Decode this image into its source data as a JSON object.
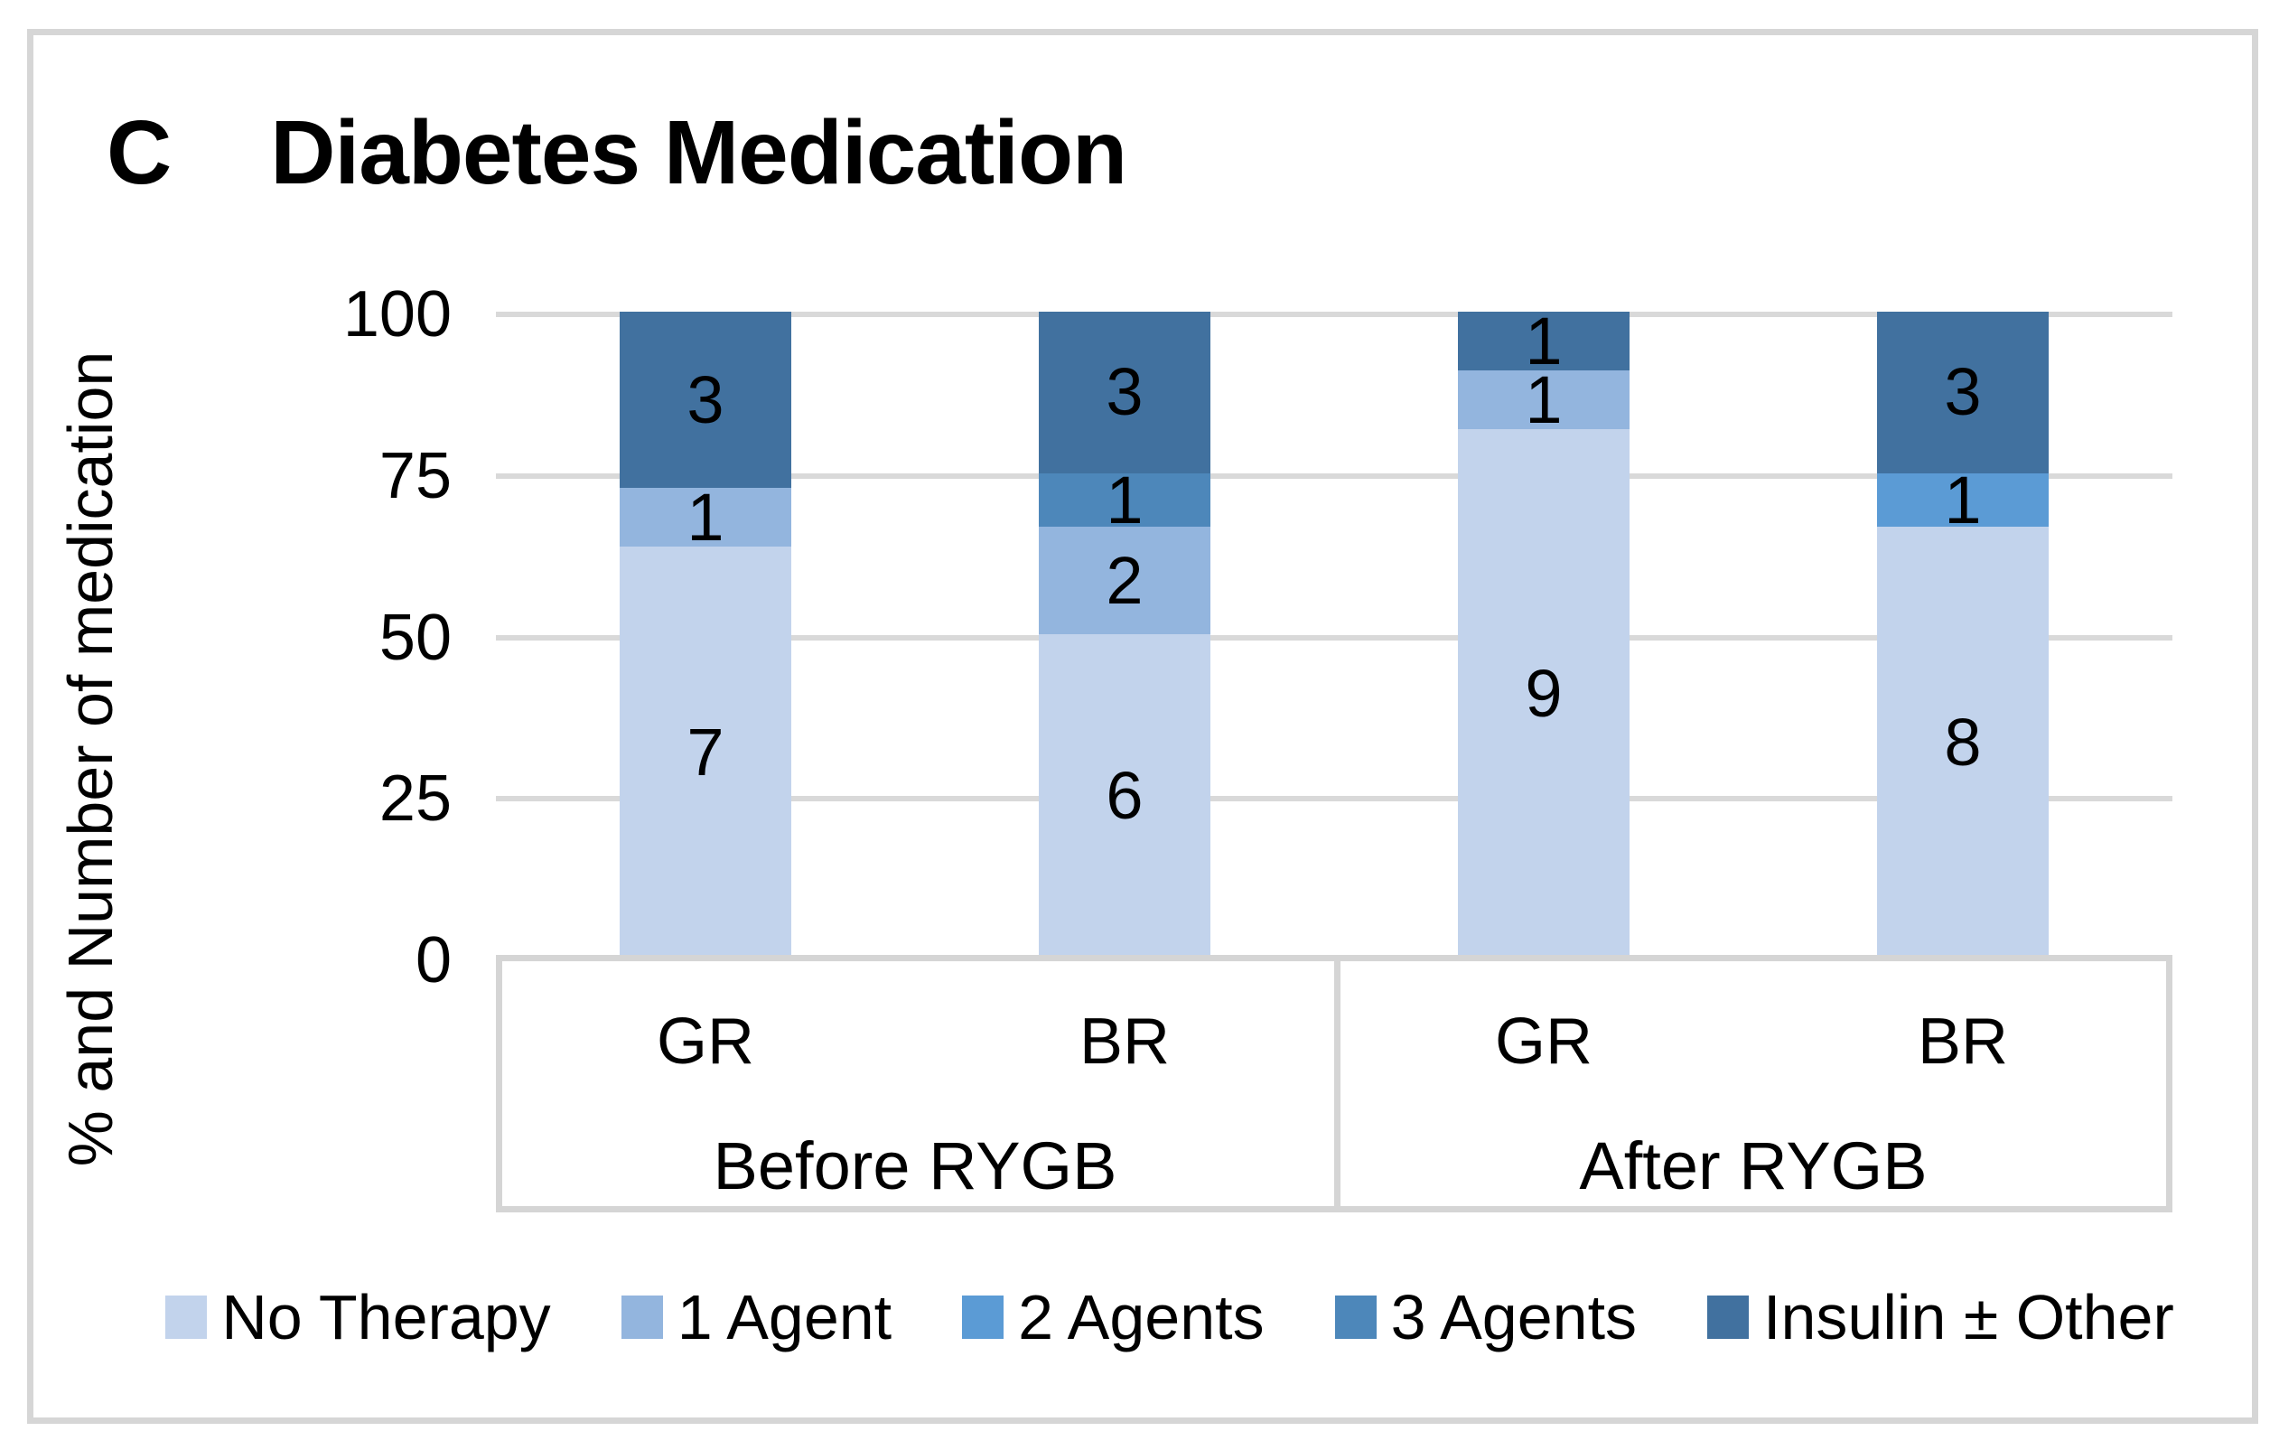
{
  "panel_label": "C",
  "title": "Diabetes Medication",
  "y_axis": {
    "label": "% and Number of medication",
    "ticks": [
      "100",
      "75",
      "50",
      "25",
      "0"
    ]
  },
  "x_axis": {
    "groups": [
      {
        "label": "Before RYGB",
        "categories": [
          "GR",
          "BR"
        ]
      },
      {
        "label": "After RYGB",
        "categories": [
          "GR",
          "BR"
        ]
      }
    ]
  },
  "legend": [
    {
      "label": "No Therapy",
      "color": "#c2d3ec"
    },
    {
      "label": "1 Agent",
      "color": "#93b5de"
    },
    {
      "label": "2 Agents",
      "color": "#5b9bd5"
    },
    {
      "label": "3 Agents",
      "color": "#4d87ba"
    },
    {
      "label": "Insulin ± Other",
      "color": "#41719f"
    }
  ],
  "chart_data": {
    "type": "bar",
    "stacked": true,
    "normalized_to_percent": true,
    "title": "Diabetes Medication",
    "ylabel": "% and Number of medication",
    "ylim": [
      0,
      100
    ],
    "yticks": [
      0,
      25,
      50,
      75,
      100
    ],
    "grid": true,
    "legend_position": "bottom",
    "categories": [
      "GR | Before RYGB",
      "BR | Before RYGB",
      "GR | After RYGB",
      "BR | After RYGB"
    ],
    "group_totals": [
      11,
      12,
      11,
      12
    ],
    "series": [
      {
        "name": "No Therapy",
        "color": "#c2d3ec",
        "values": [
          7,
          6,
          9,
          8
        ]
      },
      {
        "name": "1 Agent",
        "color": "#93b5de",
        "values": [
          1,
          2,
          1,
          0
        ]
      },
      {
        "name": "2 Agents",
        "color": "#5b9bd5",
        "values": [
          0,
          0,
          0,
          1
        ]
      },
      {
        "name": "3 Agents",
        "color": "#4d87ba",
        "values": [
          0,
          1,
          0,
          0
        ]
      },
      {
        "name": "Insulin ± Other",
        "color": "#41719f",
        "values": [
          3,
          3,
          1,
          3
        ]
      }
    ],
    "segment_labels_show": "counts"
  }
}
